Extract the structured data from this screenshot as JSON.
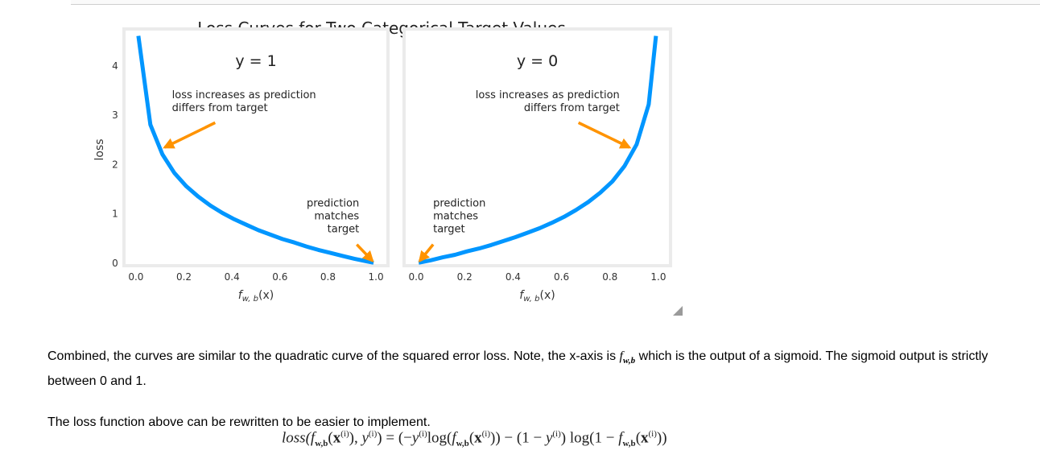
{
  "chart_data": {
    "title": "Loss Curves for Two Categorical Target Values",
    "ylabel": "loss",
    "y_ticks": [
      0,
      1,
      2,
      3,
      4
    ],
    "ylim": [
      -0.05,
      4.75
    ],
    "line_color": "#0096ff",
    "arrow_color": "#ff9300",
    "panels": [
      {
        "type": "line",
        "subtitle": "y = 1",
        "xlabel": "f_w,b(x)",
        "xlabel_main": "f",
        "xlabel_sub": "w, b",
        "xlabel_tail": "(x)",
        "x_ticks": [
          "0.0",
          "0.2",
          "0.4",
          "0.6",
          "0.8",
          "1.0"
        ],
        "xlim": [
          -0.05,
          1.05
        ],
        "x": [
          0.01,
          0.06,
          0.11,
          0.16,
          0.21,
          0.26,
          0.31,
          0.36,
          0.41,
          0.46,
          0.51,
          0.56,
          0.61,
          0.66,
          0.71,
          0.76,
          0.81,
          0.86,
          0.91,
          0.96,
          0.99
        ],
        "y": [
          4.61,
          2.81,
          2.21,
          1.83,
          1.56,
          1.35,
          1.17,
          1.02,
          0.89,
          0.78,
          0.67,
          0.58,
          0.49,
          0.42,
          0.34,
          0.27,
          0.21,
          0.15,
          0.09,
          0.04,
          0.01
        ],
        "annotations": [
          {
            "text": [
              "loss increases as prediction",
              "differs from target"
            ],
            "align": "left",
            "text_at": [
              0.15,
              3.35
            ],
            "arrow_from": [
              0.33,
              2.85
            ],
            "arrow_to": [
              0.12,
              2.35
            ]
          },
          {
            "text": [
              "prediction",
              "matches",
              "target"
            ],
            "align": "right",
            "text_at": [
              0.93,
              1.15
            ],
            "arrow_from": [
              0.92,
              0.38
            ],
            "arrow_to": [
              0.985,
              0.05
            ]
          }
        ]
      },
      {
        "type": "line",
        "subtitle": "y = 0",
        "xlabel": "f_w,b(x)",
        "xlabel_main": "f",
        "xlabel_sub": "w, b",
        "xlabel_tail": "(x)",
        "x_ticks": [
          "0.0",
          "0.2",
          "0.4",
          "0.6",
          "0.8",
          "1.0"
        ],
        "xlim": [
          -0.05,
          1.05
        ],
        "x": [
          0.01,
          0.06,
          0.11,
          0.16,
          0.21,
          0.26,
          0.31,
          0.36,
          0.41,
          0.46,
          0.51,
          0.56,
          0.61,
          0.66,
          0.71,
          0.76,
          0.81,
          0.86,
          0.91,
          0.96,
          0.99
        ],
        "y": [
          0.01,
          0.06,
          0.12,
          0.17,
          0.24,
          0.3,
          0.37,
          0.45,
          0.53,
          0.62,
          0.71,
          0.82,
          0.94,
          1.08,
          1.24,
          1.43,
          1.66,
          1.97,
          2.41,
          3.22,
          4.61
        ],
        "annotations": [
          {
            "text": [
              "loss increases as prediction",
              "differs from target"
            ],
            "align": "right",
            "text_at": [
              0.84,
              3.35
            ],
            "arrow_from": [
              0.67,
              2.85
            ],
            "arrow_to": [
              0.88,
              2.35
            ]
          },
          {
            "text": [
              "prediction",
              "matches",
              "target"
            ],
            "align": "left",
            "text_at": [
              0.07,
              1.15
            ],
            "arrow_from": [
              0.07,
              0.38
            ],
            "arrow_to": [
              0.015,
              0.05
            ]
          }
        ]
      }
    ]
  },
  "notebook": {
    "para1": {
      "before": "Combined, the curves are similar to the quadratic curve of the squared error loss. Note, the x-axis is ",
      "math": "f",
      "math_sub": "w,b",
      "after": " which is the output of a sigmoid. The sigmoid output is strictly between 0 and 1."
    },
    "para2": "The loss function above can be rewritten to be easier to implement.",
    "equation": {
      "lhs": "loss(",
      "rhs_text": ") = (−y log(f(x)) − (1 − y) log(1 − f(x))",
      "sup_i": "(i)",
      "sub_wb": "w,b",
      "bold_x": "x",
      "italic_y": "y",
      "italic_f": "f",
      "log": "log"
    }
  }
}
